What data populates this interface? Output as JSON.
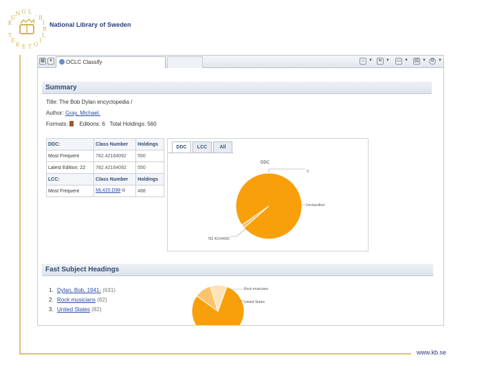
{
  "brand": {
    "logo_letters": [
      "K",
      "U",
      "N",
      "G",
      "L",
      ".",
      "B",
      "I",
      "B",
      "L",
      "I",
      "O",
      "T",
      "E",
      "K",
      "E",
      "T"
    ],
    "name": "National Library of Sweden",
    "url": "www.kb.se",
    "gold": "#d9c36c",
    "navy": "#2b3a7a"
  },
  "browser": {
    "tab_title": "OCLC Classify",
    "toolbar_icons": [
      "home-icon",
      "feeds-icon",
      "print-icon",
      "page-icon",
      "tools-icon"
    ]
  },
  "summary": {
    "heading": "Summary",
    "title_label": "Title:",
    "title_value": "The Bob Dylan encyclopedia /",
    "author_label": "Author:",
    "author_value": "Gray, Michael.",
    "formats_label": "Formats:",
    "editions_label": "Editions:",
    "editions_value": "6",
    "holdings_label": "Total Holdings:",
    "holdings_value": "560"
  },
  "classification": {
    "ddc_header": [
      "DDC:",
      "Class Number",
      "Holdings"
    ],
    "ddc_rows": [
      [
        "Most Frequent",
        "782.42164092",
        "550"
      ],
      [
        "Latest Edition: 22",
        "782.42164092",
        "550"
      ]
    ],
    "lcc_header": [
      "LCC:",
      "Class Number",
      "Holdings"
    ],
    "lcc_rows": [
      [
        "Most Frequent",
        "ML420.D98",
        "488"
      ]
    ]
  },
  "chart_panel": {
    "tabs": [
      "DDC",
      "LCC",
      "All"
    ],
    "active_tab": "DDC"
  },
  "chart_data": [
    {
      "type": "pie",
      "title": "DDC",
      "slices": [
        {
          "label": "782.42164092",
          "value": 550,
          "color": "#f99f0a"
        },
        {
          "label": "Unclassified",
          "value": 10,
          "color": "#fbc36b"
        }
      ],
      "slice_labels": [
        "782.42164092",
        "Unclassified",
        "0"
      ]
    },
    {
      "type": "pie",
      "title": "",
      "slices": [
        {
          "label": "Dylan, Bob, 1941-",
          "value": 631,
          "color": "#f99f0a"
        },
        {
          "label": "Rock musicians",
          "value": 82,
          "color": "#fbc36b"
        },
        {
          "label": "United States",
          "value": 82,
          "color": "#fde3b7"
        }
      ],
      "slice_labels": [
        "Rock musicians",
        "United States"
      ]
    }
  ],
  "subjects": {
    "heading": "Fast Subject Headings",
    "items": [
      {
        "n": "1.",
        "label": "Dylan, Bob, 1941-",
        "count": "(631)"
      },
      {
        "n": "2.",
        "label": "Rock musicians",
        "count": "(82)"
      },
      {
        "n": "3.",
        "label": "United States",
        "count": "(82)"
      }
    ]
  }
}
